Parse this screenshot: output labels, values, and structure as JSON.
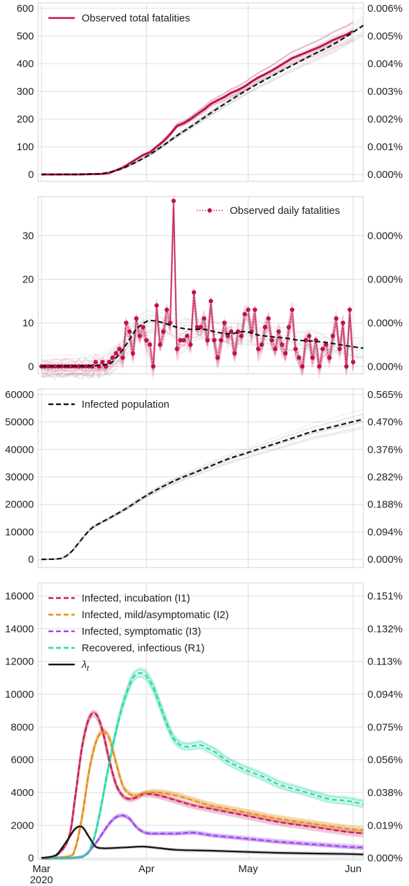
{
  "x_axis": {
    "ticks": [
      {
        "day": 0,
        "label": "Mar"
      },
      {
        "day": 31,
        "label": "Apr"
      },
      {
        "day": 61,
        "label": "May"
      },
      {
        "day": 92,
        "label": "Jun"
      }
    ],
    "year_label": "2020",
    "xlim": [
      -1,
      95
    ]
  },
  "chart_data": [
    {
      "type": "line",
      "xlim": [
        -1,
        95
      ],
      "ylim": [
        -25,
        620
      ],
      "yticks": [
        "0",
        "100",
        "200",
        "300",
        "400",
        "500",
        "600"
      ],
      "ytick_values": [
        0,
        100,
        200,
        300,
        400,
        500,
        600
      ],
      "y2ticks": [
        "0.000%",
        "0.001%",
        "0.002%",
        "0.003%",
        "0.004%",
        "0.005%",
        "0.006%"
      ],
      "grid": true,
      "legend": {
        "placement": "top-left"
      },
      "series": [
        {
          "name": "Observed total fatalities",
          "color": "#c0124a",
          "style": "solid",
          "in_legend": true,
          "x": [
            0,
            10,
            18,
            20,
            22,
            24,
            26,
            28,
            30,
            32,
            34,
            36,
            38,
            40,
            42,
            44,
            46,
            48,
            50,
            52,
            54,
            56,
            58,
            60,
            62,
            64,
            66,
            68,
            70,
            72,
            74,
            76,
            78,
            80,
            82,
            84,
            86,
            88,
            90,
            92
          ],
          "y": [
            0,
            0,
            2,
            5,
            15,
            25,
            40,
            55,
            70,
            80,
            100,
            120,
            145,
            175,
            185,
            200,
            218,
            235,
            255,
            268,
            280,
            295,
            305,
            318,
            335,
            350,
            362,
            375,
            390,
            405,
            420,
            430,
            440,
            450,
            460,
            472,
            485,
            495,
            505,
            518
          ]
        },
        {
          "name": "",
          "color": "#111111",
          "style": "dashed",
          "in_legend": false,
          "x": [
            0,
            15,
            20,
            24,
            28,
            32,
            36,
            40,
            45,
            50,
            55,
            60,
            65,
            70,
            75,
            80,
            85,
            90,
            95
          ],
          "y": [
            0,
            1,
            8,
            22,
            45,
            72,
            105,
            140,
            180,
            222,
            262,
            300,
            335,
            368,
            400,
            432,
            462,
            498,
            538
          ]
        }
      ]
    },
    {
      "type": "line",
      "xlim": [
        -1,
        95
      ],
      "ylim": [
        -1.7,
        39
      ],
      "yticks": [
        "0",
        "10",
        "20",
        "30"
      ],
      "ytick_values": [
        0,
        10,
        20,
        30
      ],
      "y2ticks": [
        "0.000%",
        "0.000%",
        "0.000%",
        "0.000%"
      ],
      "grid": true,
      "legend": {
        "placement": "top-right"
      },
      "series": [
        {
          "name": "Observed daily fatalities",
          "color": "#c0124a",
          "style": "dotted-markers",
          "in_legend": true,
          "x": [
            0,
            1,
            2,
            3,
            4,
            5,
            6,
            7,
            8,
            9,
            10,
            11,
            12,
            13,
            14,
            15,
            16,
            17,
            18,
            19,
            20,
            21,
            22,
            23,
            24,
            25,
            26,
            27,
            28,
            29,
            30,
            31,
            32,
            33,
            34,
            35,
            36,
            37,
            38,
            39,
            40,
            41,
            42,
            43,
            44,
            45,
            46,
            47,
            48,
            49,
            50,
            51,
            52,
            53,
            54,
            55,
            56,
            57,
            58,
            59,
            60,
            61,
            62,
            63,
            64,
            65,
            66,
            67,
            68,
            69,
            70,
            71,
            72,
            73,
            74,
            75,
            76,
            77,
            78,
            79,
            80,
            81,
            82,
            83,
            84,
            85,
            86,
            87,
            88,
            89,
            90,
            91,
            92
          ],
          "y": [
            0,
            0,
            0,
            0,
            0,
            0,
            0,
            0,
            0,
            0,
            0,
            0,
            0,
            0,
            0,
            0,
            1,
            0,
            1,
            0,
            1,
            2,
            3,
            4,
            2,
            10,
            8,
            3,
            11,
            7,
            9,
            6,
            5,
            0,
            14,
            5,
            8,
            13,
            10,
            38,
            4,
            6,
            6,
            7,
            5,
            17,
            9,
            9,
            11,
            6,
            15,
            6,
            2,
            6,
            10,
            7,
            8,
            3,
            8,
            7,
            12,
            13,
            8,
            13,
            4,
            5,
            9,
            11,
            6,
            4,
            8,
            5,
            3,
            9,
            13,
            4,
            2,
            0,
            6,
            7,
            2,
            6,
            0,
            4,
            5,
            2,
            7,
            11,
            4,
            10,
            0,
            13,
            1
          ]
        },
        {
          "name": "",
          "color": "#111111",
          "style": "dashed",
          "in_legend": false,
          "x": [
            0,
            18,
            22,
            25,
            28,
            31,
            33,
            36,
            40,
            44,
            48,
            52,
            56,
            60,
            64,
            68,
            72,
            76,
            80,
            84,
            88,
            92,
            95
          ],
          "y": [
            0,
            0.3,
            2,
            5,
            8.5,
            10.3,
            10.5,
            10,
            9,
            8.5,
            8.5,
            7.8,
            7.5,
            8,
            7.2,
            6.8,
            6.5,
            6,
            5.8,
            5.5,
            5,
            4.5,
            4.2
          ]
        }
      ]
    },
    {
      "type": "line",
      "xlim": [
        -1,
        95
      ],
      "ylim": [
        -3000,
        62000
      ],
      "yticks": [
        "0",
        "10000",
        "20000",
        "30000",
        "40000",
        "50000",
        "60000"
      ],
      "ytick_values": [
        0,
        10000,
        20000,
        30000,
        40000,
        50000,
        60000
      ],
      "y2ticks": [
        "0.000%",
        "0.094%",
        "0.188%",
        "0.282%",
        "0.376%",
        "0.470%",
        "0.565%"
      ],
      "grid": true,
      "legend": {
        "placement": "top-left"
      },
      "series": [
        {
          "name": "Infected population",
          "color": "#111111",
          "style": "dashed",
          "in_legend": true,
          "x": [
            0,
            5,
            7,
            9,
            11,
            13,
            15,
            17,
            20,
            25,
            30,
            35,
            40,
            45,
            50,
            55,
            60,
            65,
            70,
            75,
            80,
            85,
            90,
            95
          ],
          "y": [
            0,
            200,
            1000,
            3000,
            6000,
            9000,
            11500,
            13000,
            15000,
            18500,
            22500,
            26000,
            29000,
            31500,
            34000,
            36500,
            38500,
            40500,
            42500,
            44500,
            46500,
            48000,
            49500,
            51000
          ]
        }
      ]
    },
    {
      "type": "line",
      "xlim": [
        -1,
        95
      ],
      "ylim": [
        -100,
        16800
      ],
      "yticks": [
        "0",
        "2000",
        "4000",
        "6000",
        "8000",
        "10000",
        "12000",
        "14000",
        "16000"
      ],
      "ytick_values": [
        0,
        2000,
        4000,
        6000,
        8000,
        10000,
        12000,
        14000,
        16000
      ],
      "y2ticks": [
        "0.000%",
        "0.019%",
        "0.038%",
        "0.056%",
        "0.075%",
        "0.094%",
        "0.113%",
        "0.132%",
        "0.151%"
      ],
      "grid": true,
      "legend": {
        "placement": "top-left"
      },
      "series": [
        {
          "name": "Infected, incubation (I1)",
          "color": "#c8174f",
          "style": "dashed",
          "in_legend": true,
          "x": [
            0,
            4,
            8,
            10,
            12,
            14,
            16,
            18,
            20,
            22,
            24,
            26,
            28,
            30,
            32,
            35,
            40,
            45,
            50,
            55,
            60,
            70,
            80,
            90,
            95
          ],
          "y": [
            0,
            100,
            1200,
            3800,
            6800,
            8500,
            8800,
            7800,
            6000,
            4500,
            3800,
            3600,
            3700,
            3900,
            3900,
            3800,
            3500,
            3200,
            3000,
            2800,
            2600,
            2200,
            1900,
            1600,
            1500
          ]
        },
        {
          "name": "Infected, mild/asymptomatic (I2)",
          "color": "#e88a10",
          "style": "dashed",
          "in_legend": true,
          "x": [
            0,
            8,
            10,
            12,
            14,
            16,
            18,
            20,
            22,
            24,
            26,
            28,
            30,
            32,
            35,
            40,
            45,
            50,
            55,
            60,
            70,
            80,
            90,
            95
          ],
          "y": [
            0,
            100,
            600,
            2500,
            5200,
            7000,
            7700,
            7300,
            5800,
            4400,
            3900,
            3800,
            3900,
            4000,
            4000,
            3800,
            3500,
            3200,
            3000,
            2800,
            2400,
            2100,
            1800,
            1700
          ]
        },
        {
          "name": "Infected, symptomatic (I3)",
          "color": "#9a45e8",
          "style": "dashed",
          "in_legend": true,
          "x": [
            0,
            10,
            13,
            16,
            18,
            20,
            22,
            24,
            26,
            28,
            30,
            32,
            35,
            40,
            45,
            50,
            55,
            60,
            70,
            80,
            90,
            95
          ],
          "y": [
            0,
            20,
            200,
            900,
            1500,
            2100,
            2500,
            2600,
            2400,
            1900,
            1600,
            1500,
            1500,
            1500,
            1550,
            1400,
            1300,
            1200,
            1000,
            850,
            700,
            650
          ]
        },
        {
          "name": "Recovered, infectious (R1)",
          "color": "#20d8a8",
          "style": "dashed",
          "in_legend": true,
          "x": [
            0,
            12,
            15,
            17,
            19,
            21,
            23,
            25,
            27,
            29,
            31,
            33,
            35,
            37,
            39,
            41,
            43,
            45,
            47,
            49,
            51,
            53,
            55,
            60,
            65,
            70,
            75,
            80,
            85,
            90,
            95
          ],
          "y": [
            0,
            100,
            900,
            2500,
            4700,
            6800,
            8600,
            10000,
            11000,
            11300,
            11100,
            10400,
            9300,
            8200,
            7300,
            6900,
            6800,
            6850,
            6900,
            6700,
            6500,
            6200,
            5900,
            5400,
            5000,
            4500,
            4200,
            3900,
            3600,
            3500,
            3300
          ]
        },
        {
          "name": "λt",
          "color": "#111111",
          "style": "solid",
          "in_legend": true,
          "x": [
            0,
            4,
            6,
            8,
            10,
            12,
            14,
            16,
            18,
            20,
            25,
            30,
            35,
            40,
            50,
            60,
            70,
            80,
            90,
            95
          ],
          "y": [
            0,
            150,
            600,
            1200,
            1800,
            1900,
            1300,
            700,
            600,
            600,
            650,
            700,
            600,
            500,
            450,
            380,
            320,
            280,
            250,
            220
          ]
        }
      ]
    }
  ]
}
